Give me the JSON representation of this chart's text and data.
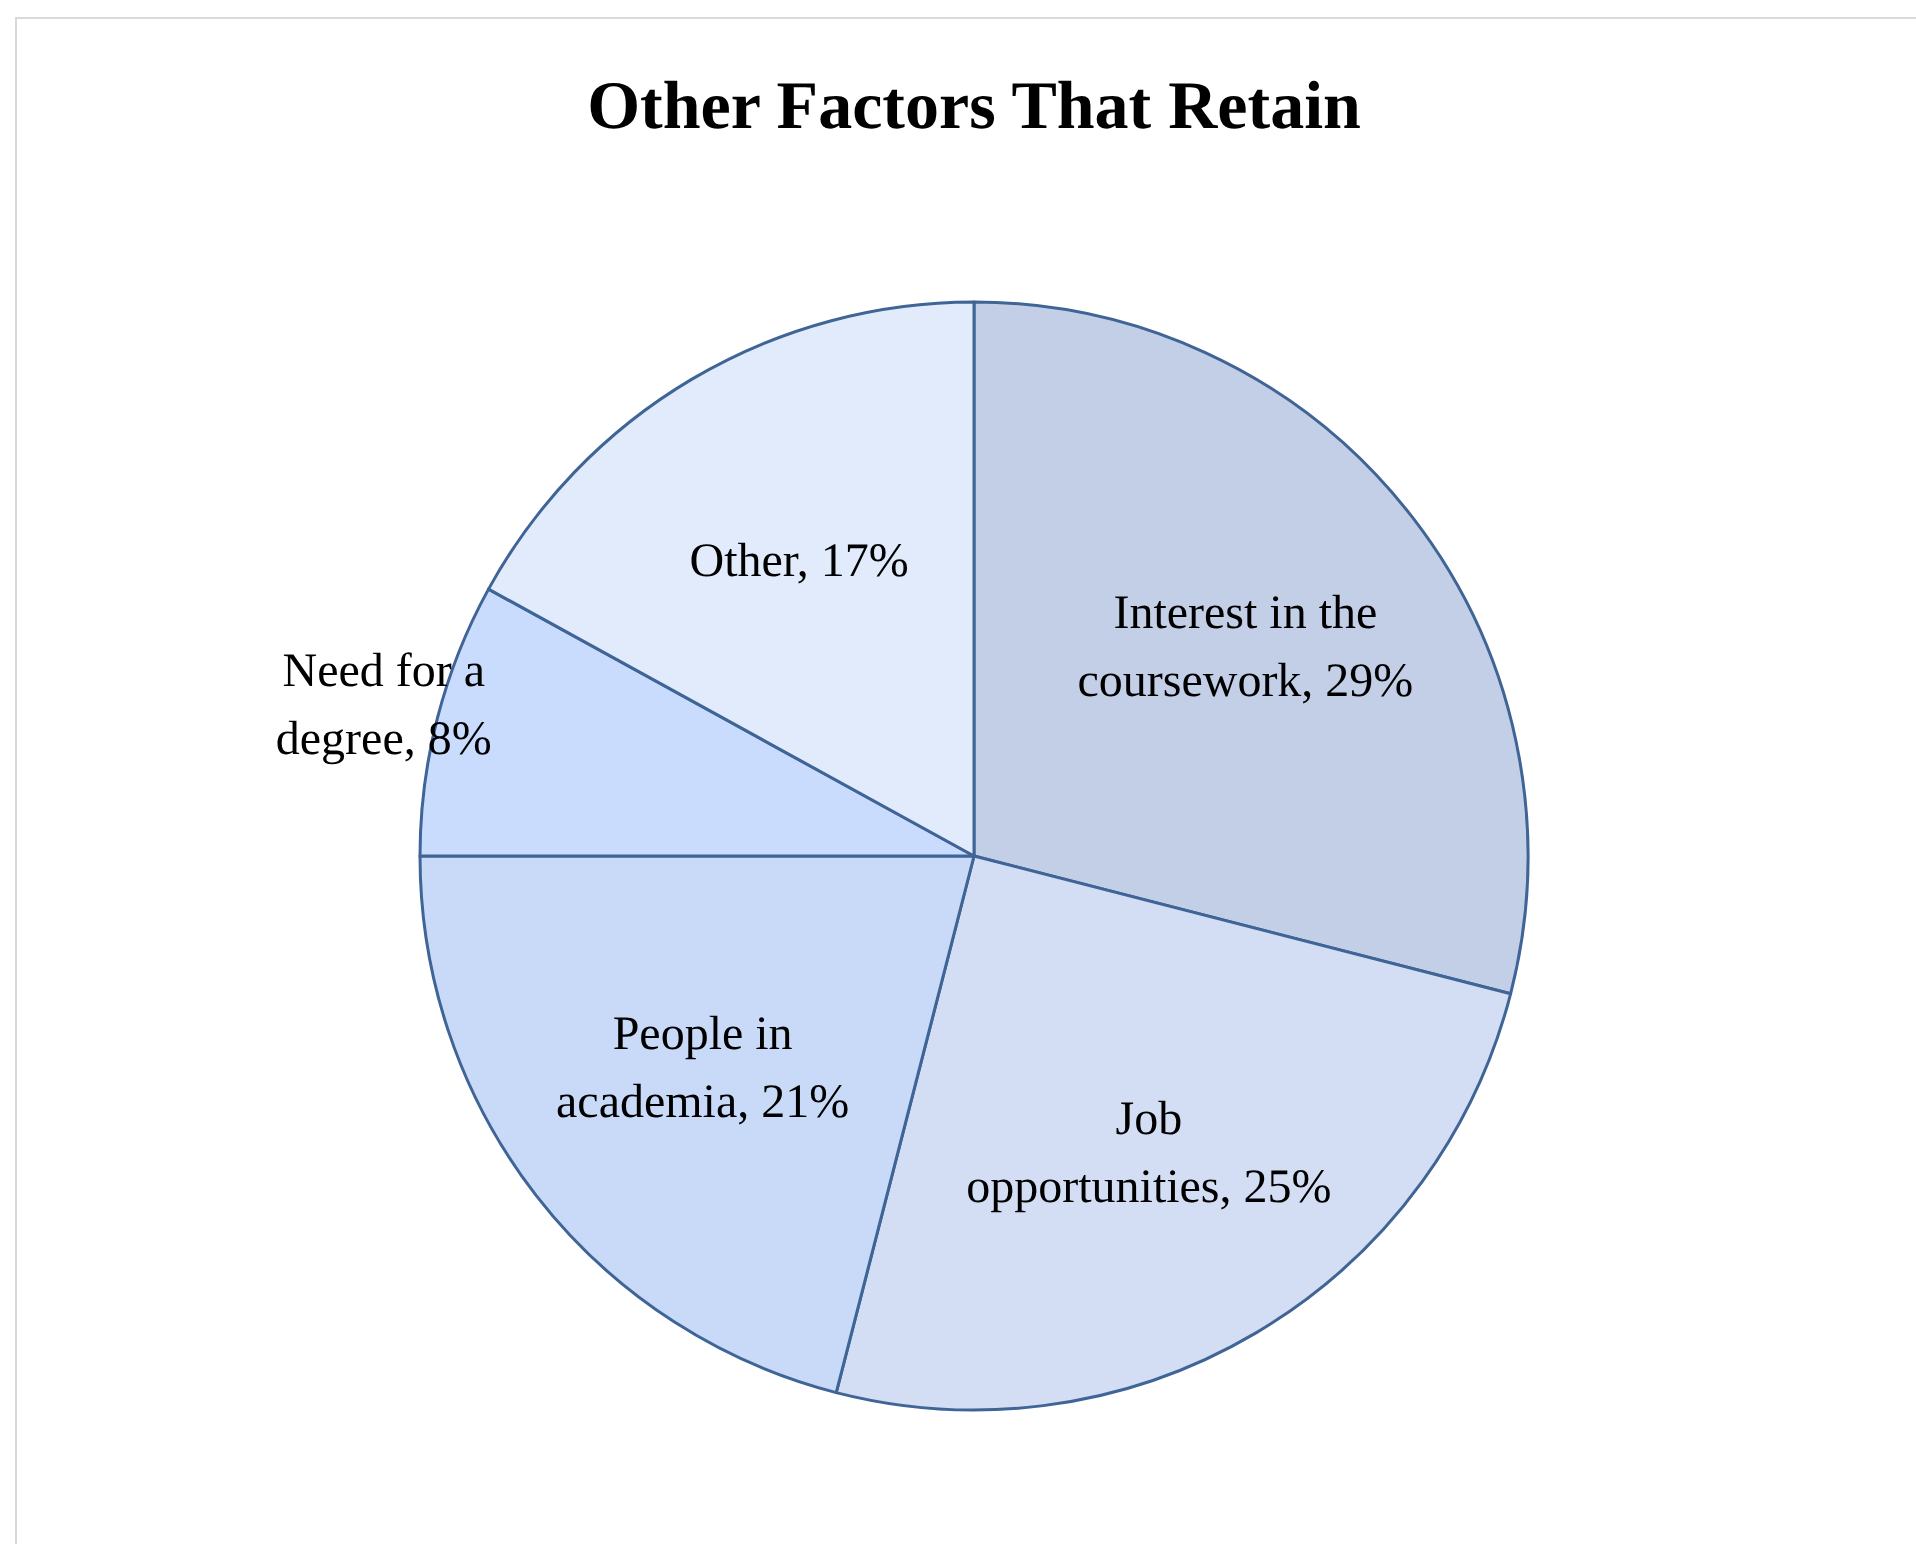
{
  "chart_data": {
    "type": "pie",
    "title": "Other Factors That Retain",
    "categories": [
      "Interest in the coursework",
      "Job opportunities",
      "People in academia",
      "Need for a degree",
      "Other"
    ],
    "values": [
      29,
      25,
      21,
      8,
      17
    ],
    "value_labels": [
      "29%",
      "25%",
      "21%",
      "8%",
      "17%"
    ],
    "colors": [
      "#c3cfe6",
      "#d3def4",
      "#c9daf9",
      "#cadcfd",
      "#e1ebfc"
    ]
  }
}
